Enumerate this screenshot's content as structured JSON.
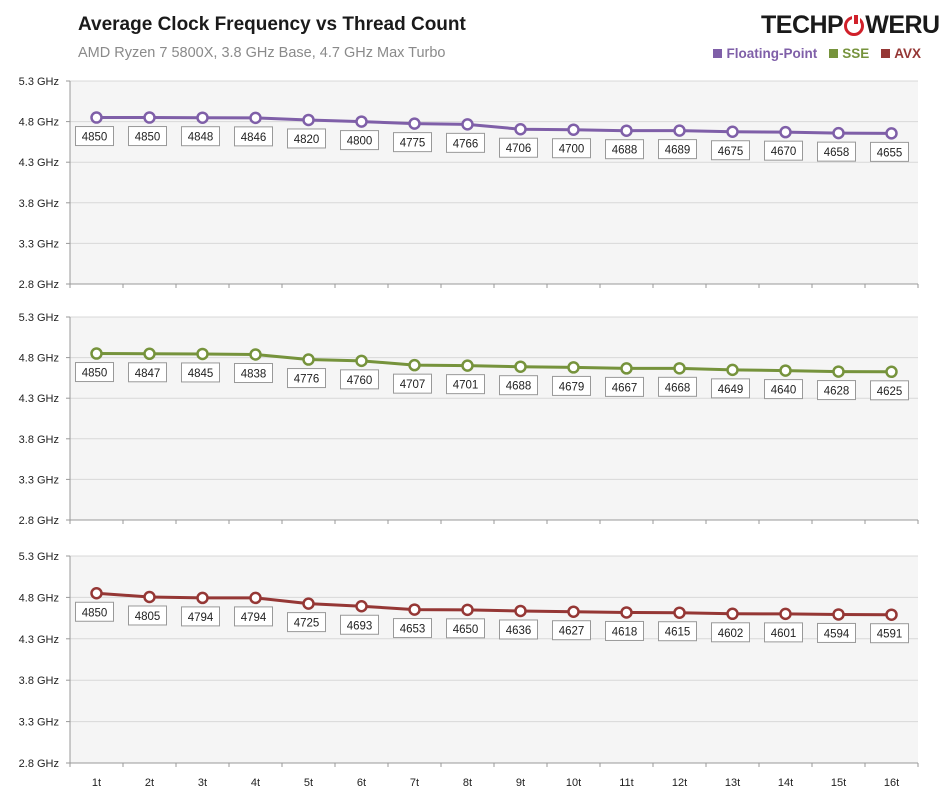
{
  "header": {
    "title": "Average Clock Frequency vs Thread Count",
    "subtitle": "AMD Ryzen 7 5800X, 3.8 GHz Base, 4.7 GHz Max Turbo",
    "logo_left": "TECHP",
    "logo_right": "WERUP"
  },
  "legend": [
    {
      "label": "Floating-Point",
      "color": "#7f5fa8"
    },
    {
      "label": "SSE",
      "color": "#76933c"
    },
    {
      "label": "AVX",
      "color": "#953735"
    }
  ],
  "chart_data": {
    "type": "line",
    "title": "Average Clock Frequency vs Thread Count",
    "categories": [
      "1t",
      "2t",
      "3t",
      "4t",
      "5t",
      "6t",
      "7t",
      "8t",
      "9t",
      "10t",
      "11t",
      "12t",
      "13t",
      "14t",
      "15t",
      "16t"
    ],
    "y_ticks": [
      "5.3 GHz",
      "4.8 GHz",
      "4.3 GHz",
      "3.8 GHz",
      "3.3 GHz",
      "2.8 GHz"
    ],
    "ylim": [
      2800,
      5300
    ],
    "series": [
      {
        "name": "Floating-Point",
        "color": "#7f5fa8",
        "values": [
          4850,
          4850,
          4848,
          4846,
          4820,
          4800,
          4775,
          4766,
          4706,
          4700,
          4688,
          4689,
          4675,
          4670,
          4658,
          4655
        ]
      },
      {
        "name": "SSE",
        "color": "#76933c",
        "values": [
          4850,
          4847,
          4845,
          4838,
          4776,
          4760,
          4707,
          4701,
          4688,
          4679,
          4667,
          4668,
          4649,
          4640,
          4628,
          4625
        ]
      },
      {
        "name": "AVX",
        "color": "#953735",
        "values": [
          4850,
          4805,
          4794,
          4794,
          4725,
          4693,
          4653,
          4650,
          4636,
          4627,
          4618,
          4615,
          4602,
          4601,
          4594,
          4591
        ]
      }
    ]
  }
}
